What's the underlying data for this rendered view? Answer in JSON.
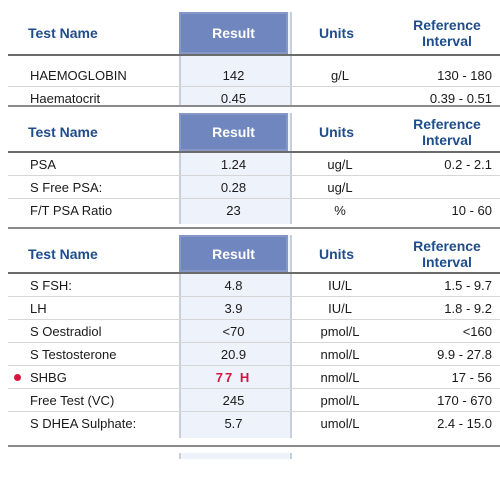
{
  "columns": {
    "name": "Test Name",
    "result": "Result",
    "units": "Units",
    "ref_line1": "Reference",
    "ref_line2": "Interval"
  },
  "sections": [
    {
      "rows": [
        {
          "name": "HAEMOGLOBIN",
          "result": "142",
          "units": "g/L",
          "ref": "130 - 180"
        },
        {
          "name": "Haematocrit",
          "result": "0.45",
          "units": "",
          "ref": "0.39 - 0.51"
        }
      ]
    },
    {
      "rows": [
        {
          "name": "PSA",
          "result": "1.24",
          "units": "ug/L",
          "ref": "0.2 - 2.1"
        },
        {
          "name": "S Free PSA:",
          "result": "0.28",
          "units": "ug/L",
          "ref": ""
        },
        {
          "name": "F/T PSA Ratio",
          "result": "23",
          "units": "%",
          "ref": "10 - 60"
        }
      ]
    },
    {
      "rows": [
        {
          "name": "S FSH:",
          "result": "4.8",
          "units": "IU/L",
          "ref": "1.5 - 9.7"
        },
        {
          "name": "LH",
          "result": "3.9",
          "units": "IU/L",
          "ref": "1.8 - 9.2"
        },
        {
          "name": "S Oestradiol",
          "result": "<70",
          "units": "pmol/L",
          "ref": "<160"
        },
        {
          "name": "S Testosterone",
          "result": "20.9",
          "units": "nmol/L",
          "ref": "9.9 - 27.8"
        },
        {
          "name": "SHBG",
          "result": "77 H",
          "units": "nmol/L",
          "ref": "17 - 56",
          "flagged": true
        },
        {
          "name": "Free Test (VC)",
          "result": "245",
          "units": "pmol/L",
          "ref": "170 - 670"
        },
        {
          "name": "S DHEA Sulphate:",
          "result": "5.7",
          "units": "umol/L",
          "ref": "2.4 - 15.0"
        }
      ]
    }
  ],
  "colors": {
    "header_text": "#1f4d8c",
    "result_header_bg": "#6f86bf",
    "result_column_bg": "#eef2fb",
    "flag": "#d6153e"
  }
}
